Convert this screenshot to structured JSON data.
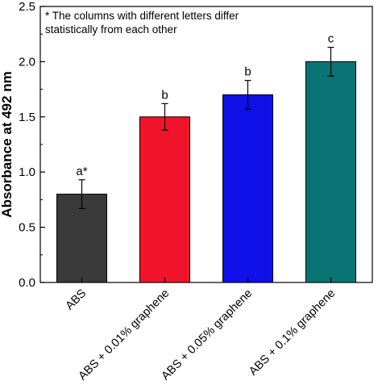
{
  "chart_data": {
    "type": "bar",
    "categories": [
      "ABS",
      "ABS + 0.01% graphene",
      "ABS + 0.05% graphene",
      "ABS + 0.1% graphene"
    ],
    "values": [
      0.8,
      1.5,
      1.7,
      2.0
    ],
    "errors": [
      0.13,
      0.12,
      0.13,
      0.13
    ],
    "letters": [
      "a*",
      "b",
      "b",
      "c"
    ],
    "colors": [
      "#3a3a3a",
      "#f0142a",
      "#1010e8",
      "#0a7474"
    ],
    "ylabel": "Absorbance at 492 nm",
    "xlabel": "",
    "ylim": [
      0,
      2.5
    ],
    "yticks": [
      "0.0",
      "0.5",
      "1.0",
      "1.5",
      "2.0",
      "2.5"
    ],
    "annotation_lines": [
      "* The columns with different letters differ",
      "statistically from each other"
    ],
    "grid": false
  }
}
